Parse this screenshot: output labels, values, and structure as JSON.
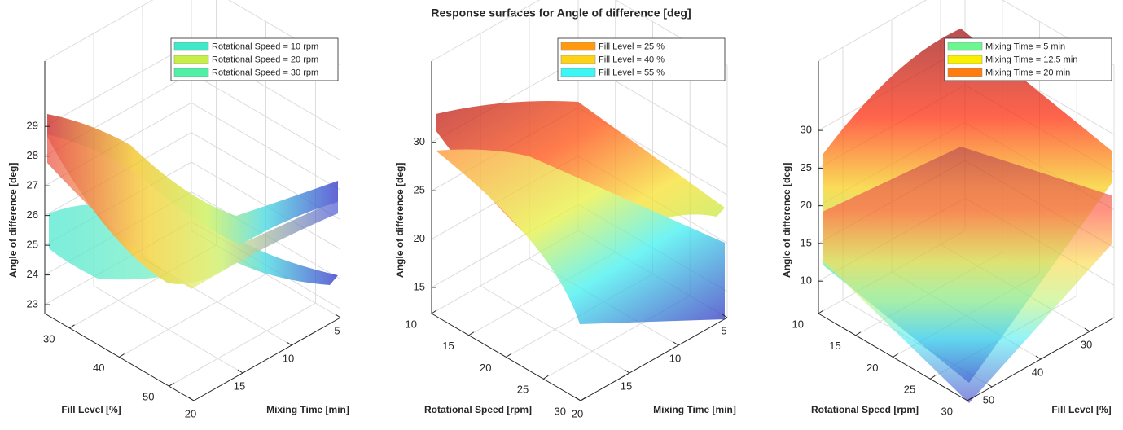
{
  "title": "Response surfaces for Angle of difference [deg]",
  "chart_data": [
    {
      "type": "surface3d",
      "xlabel": "Fill Level [%]",
      "ylabel": "Mixing Time [min]",
      "zlabel": "Angle of difference [deg]",
      "xlim": [
        25,
        55
      ],
      "ylim": [
        20,
        5
      ],
      "zlim": [
        22.7,
        31.2
      ],
      "xticks": [
        30,
        40,
        50
      ],
      "yticks": [
        5,
        10,
        15,
        20
      ],
      "zticks": [
        23,
        24,
        25,
        26,
        27,
        28,
        29
      ],
      "grid": true,
      "legend": "upper right",
      "series": [
        {
          "name": "Rotational Speed = 10 rpm",
          "color": "#3fe8c8"
        },
        {
          "name": "Rotational Speed = 20 rpm",
          "color": "#c6ef4a"
        },
        {
          "name": "Rotational Speed = 30 rpm",
          "color": "#4ff0a6"
        }
      ]
    },
    {
      "type": "surface3d",
      "xlabel": "Rotational Speed [rpm]",
      "ylabel": "Mixing Time [min]",
      "zlabel": "Angle of difference [deg]",
      "xlim": [
        10,
        30
      ],
      "ylim": [
        20,
        5
      ],
      "zlim": [
        12.3,
        38.4
      ],
      "xticks": [
        10,
        15,
        20,
        25,
        30
      ],
      "yticks": [
        5,
        10,
        15,
        20
      ],
      "zticks": [
        15,
        20,
        25,
        30
      ],
      "grid": true,
      "legend": "upper right",
      "series": [
        {
          "name": "Fill Level = 25 %",
          "color": "#ff9a10"
        },
        {
          "name": "Fill Level = 40 %",
          "color": "#ffd21a"
        },
        {
          "name": "Fill Level = 55 %",
          "color": "#3cf6f6"
        }
      ]
    },
    {
      "type": "surface3d",
      "xlabel": "Rotational Speed [rpm]",
      "ylabel": "Fill Level [%]",
      "zlabel": "Angle of difference [deg]",
      "xlim": [
        10,
        30
      ],
      "ylim": [
        55,
        25
      ],
      "zlim": [
        5.7,
        39.2
      ],
      "xticks": [
        10,
        15,
        20,
        25,
        30
      ],
      "yticks": [
        30,
        40,
        50
      ],
      "zticks": [
        10,
        15,
        20,
        25,
        30
      ],
      "grid": true,
      "legend": "upper right",
      "series": [
        {
          "name": "Mixing Time = 5 min",
          "color": "#6cf590"
        },
        {
          "name": "Mixing Time = 12.5 min",
          "color": "#f8f000"
        },
        {
          "name": "Mixing Time = 20 min",
          "color": "#ff7d10"
        }
      ]
    }
  ]
}
